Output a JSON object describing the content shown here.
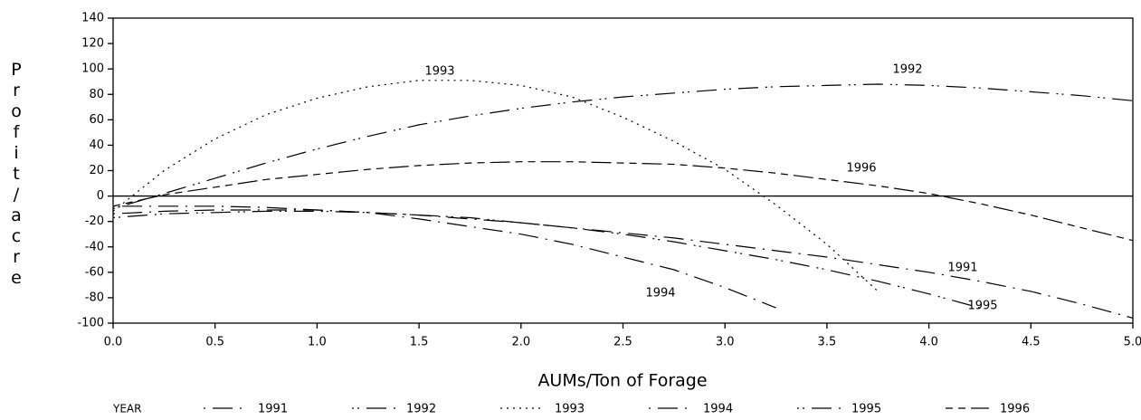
{
  "chart_data": {
    "type": "line",
    "xlabel": "AUMs/Ton of Forage",
    "ylabel": "Profit/acre",
    "legend_title": "YEAR",
    "x": [
      0,
      0.25,
      0.5,
      0.75,
      1,
      1.25,
      1.5,
      1.75,
      2,
      2.25,
      2.5,
      2.75,
      3,
      3.25,
      3.5,
      3.75,
      4,
      4.25,
      4.5,
      4.75,
      5
    ],
    "series": [
      {
        "name": "1991",
        "color": "#000000",
        "values": [
          -8,
          -8,
          -8,
          -9,
          -11,
          -13,
          -15,
          -18,
          -21,
          -25,
          -29,
          -33,
          -38,
          -43,
          -48,
          -54,
          -60,
          -67,
          -75,
          -85,
          -96
        ]
      },
      {
        "name": "1992",
        "color": "#000000",
        "values": [
          -10,
          2,
          14,
          26,
          37,
          47,
          56,
          63,
          69,
          74,
          78,
          81,
          84,
          86,
          87,
          88,
          87,
          85,
          82,
          79,
          75
        ]
      },
      {
        "name": "1993",
        "color": "#000000",
        "values": [
          -12,
          20,
          45,
          64,
          77,
          86,
          91,
          91,
          87,
          78,
          62,
          43,
          21,
          -7,
          -38,
          -75,
          null,
          null,
          null,
          null,
          null
        ]
      },
      {
        "name": "1994",
        "color": "#000000",
        "values": [
          -14,
          -12,
          -11,
          -11,
          -11,
          -13,
          -18,
          -24,
          -30,
          -38,
          -48,
          -58,
          -72,
          -88,
          null,
          null,
          null,
          null,
          null,
          null,
          null
        ]
      },
      {
        "name": "1995",
        "color": "#000000",
        "values": [
          -17,
          -14,
          -13,
          -12,
          -12,
          -13,
          -15,
          -17,
          -21,
          -25,
          -30,
          -36,
          -43,
          -50,
          -58,
          -67,
          -77,
          -88,
          null,
          null,
          null
        ]
      },
      {
        "name": "1996",
        "color": "#000000",
        "values": [
          -8,
          1,
          7,
          13,
          17,
          21,
          24,
          26,
          27,
          27,
          26,
          25,
          22,
          18,
          13,
          8,
          2,
          -6,
          -15,
          -25,
          -35
        ]
      }
    ],
    "annotations": [
      "1993",
      "1992",
      "1996",
      "1991",
      "1994",
      "1995"
    ],
    "reference_line": 0,
    "xlim": [
      0,
      5
    ],
    "xticks": [
      {
        "value": 0,
        "label": "0.0"
      },
      0.5,
      {
        "value": 1,
        "label": "1.0"
      },
      1.5,
      {
        "value": 2,
        "label": "2.0"
      },
      2.5,
      {
        "value": 3,
        "label": "3.0"
      },
      3.5,
      {
        "value": 4,
        "label": "4.0"
      },
      4.5,
      {
        "value": 5,
        "label": "5.0"
      }
    ],
    "ylim": [
      -100,
      140
    ],
    "yticks": [
      -100,
      -80,
      -60,
      -40,
      -20,
      0,
      20,
      40,
      60,
      80,
      100,
      120,
      140
    ],
    "grid": false
  }
}
